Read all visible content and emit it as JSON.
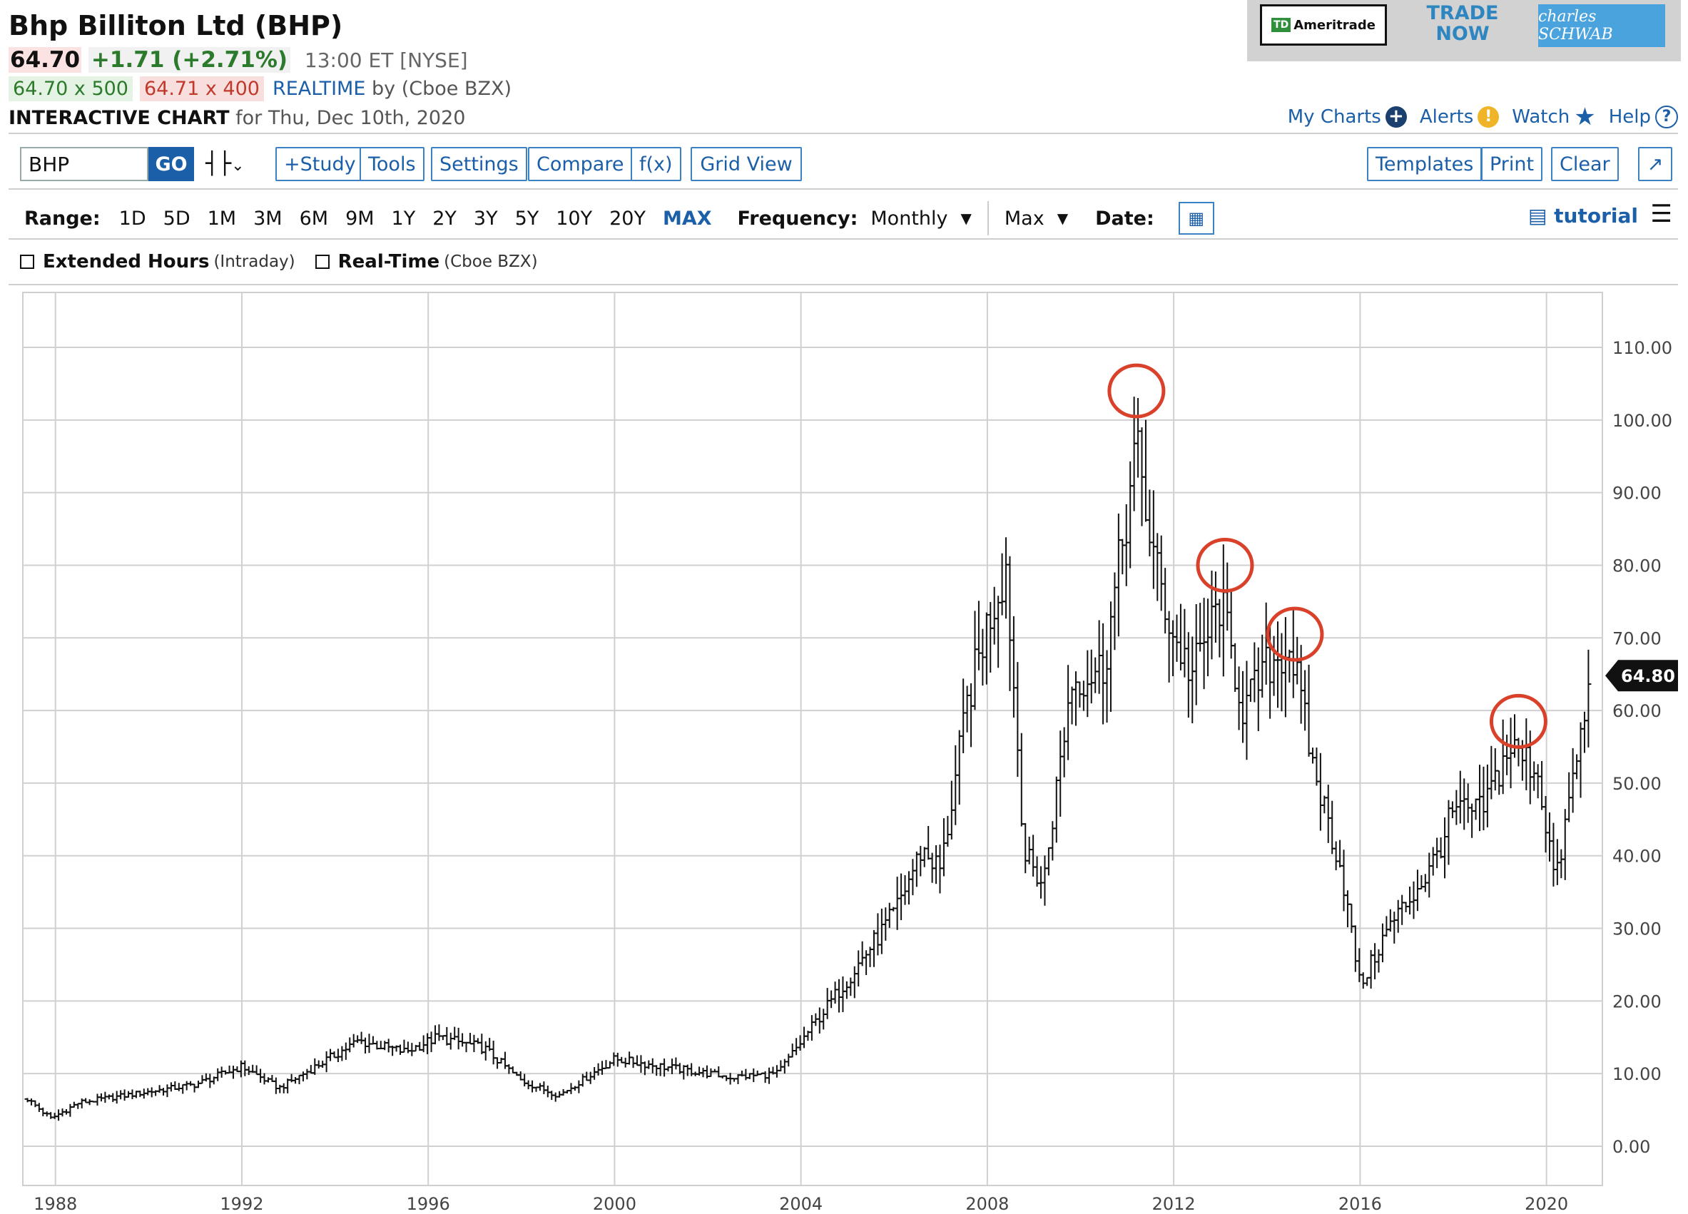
{
  "header": {
    "title": "Bhp Billiton Ltd (BHP)",
    "price": "64.70",
    "change": "+1.71",
    "change_pct": "(+2.71%)",
    "time": "13:00 ET [NYSE]",
    "bid": "64.70 x 500",
    "ask": "64.71 x 400",
    "realtime": "REALTIME",
    "realtime_by": "by (Cboe BZX)",
    "chart_label": "INTERACTIVE CHART",
    "chart_date": "for Thu, Dec 10th, 2020"
  },
  "ads": {
    "td_label": "Ameritrade",
    "td_logo": "TD",
    "trade_now": "TRADE NOW",
    "schwab": "charles SCHWAB"
  },
  "toplinks": {
    "my_charts": "My Charts",
    "alerts": "Alerts",
    "watch": "Watch",
    "help": "Help"
  },
  "toolbar": {
    "symbol": "BHP",
    "go": "GO",
    "study": "+Study",
    "tools": "Tools",
    "settings": "Settings",
    "compare": "Compare",
    "fx": "f(x)",
    "grid_view": "Grid View",
    "templates": "Templates",
    "print": "Print",
    "clear": "Clear",
    "expand_icon": "↗"
  },
  "range": {
    "label": "Range:",
    "options": [
      "1D",
      "5D",
      "1M",
      "3M",
      "6M",
      "9M",
      "1Y",
      "2Y",
      "3Y",
      "5Y",
      "10Y",
      "20Y",
      "MAX"
    ],
    "selected": "MAX",
    "frequency_label": "Frequency:",
    "frequency_value": "Monthly",
    "period_value": "Max",
    "date_label": "Date:",
    "tutorial": "tutorial"
  },
  "checkboxes": {
    "extended_label": "Extended Hours",
    "extended_sub": "(Intraday)",
    "realtime_label": "Real-Time",
    "realtime_sub": "(Cboe BZX)"
  },
  "colors": {
    "accent": "#1b5fa8",
    "up": "#2c7a2c",
    "down": "#c0392b",
    "highlight_circle": "#d9412b",
    "bar": "#111111",
    "grid": "#d0d0d0"
  },
  "chart_data": {
    "type": "ohlc",
    "frequency": "monthly",
    "last_value_label": "64.80",
    "ylim": [
      0,
      110
    ],
    "y_ticks": [
      0,
      10,
      20,
      30,
      40,
      50,
      60,
      70,
      80,
      90,
      100,
      110
    ],
    "y_tick_labels": [
      "0.00",
      "10.00",
      "20.00",
      "30.00",
      "40.00",
      "50.00",
      "60.00",
      "70.00",
      "80.00",
      "90.00",
      "100.00",
      "110.00"
    ],
    "x_ticks": [
      1988,
      1992,
      1996,
      2000,
      2004,
      2008,
      2012,
      2016,
      2020
    ],
    "x_tick_labels": [
      "1988",
      "1992",
      "1996",
      "2000",
      "2004",
      "2008",
      "2012",
      "2016",
      "2020"
    ],
    "x_range": [
      1987.3,
      2021.2
    ],
    "grid": true,
    "key_points": [
      {
        "t": 1987.4,
        "v": 6.5
      },
      {
        "t": 1987.9,
        "v": 3.8
      },
      {
        "t": 1988.5,
        "v": 6.0
      },
      {
        "t": 1990.0,
        "v": 7.5
      },
      {
        "t": 1991.0,
        "v": 8.5
      },
      {
        "t": 1992.0,
        "v": 11.0
      },
      {
        "t": 1992.8,
        "v": 8.0
      },
      {
        "t": 1994.5,
        "v": 14.5
      },
      {
        "t": 1995.5,
        "v": 13.0
      },
      {
        "t": 1996.2,
        "v": 15.0
      },
      {
        "t": 1997.2,
        "v": 13.5
      },
      {
        "t": 1998.0,
        "v": 9.0
      },
      {
        "t": 1998.8,
        "v": 7.0
      },
      {
        "t": 2000.0,
        "v": 12.0
      },
      {
        "t": 2001.5,
        "v": 10.5
      },
      {
        "t": 2002.5,
        "v": 9.5
      },
      {
        "t": 2003.5,
        "v": 10.0
      },
      {
        "t": 2004.3,
        "v": 17.0
      },
      {
        "t": 2005.0,
        "v": 23.0
      },
      {
        "t": 2006.0,
        "v": 32.0
      },
      {
        "t": 2006.6,
        "v": 41.0
      },
      {
        "t": 2007.0,
        "v": 38.0
      },
      {
        "t": 2007.6,
        "v": 62.0
      },
      {
        "t": 2008.0,
        "v": 72.0
      },
      {
        "t": 2008.4,
        "v": 80.0
      },
      {
        "t": 2008.8,
        "v": 40.0
      },
      {
        "t": 2009.2,
        "v": 36.0
      },
      {
        "t": 2009.8,
        "v": 64.0
      },
      {
        "t": 2010.5,
        "v": 66.0
      },
      {
        "t": 2011.2,
        "v": 96.0
      },
      {
        "t": 2011.6,
        "v": 80.0
      },
      {
        "t": 2012.0,
        "v": 70.0
      },
      {
        "t": 2012.4,
        "v": 65.0
      },
      {
        "t": 2013.0,
        "v": 75.0
      },
      {
        "t": 2013.5,
        "v": 60.0
      },
      {
        "t": 2014.0,
        "v": 66.0
      },
      {
        "t": 2014.5,
        "v": 69.0
      },
      {
        "t": 2015.0,
        "v": 52.0
      },
      {
        "t": 2015.6,
        "v": 38.0
      },
      {
        "t": 2016.0,
        "v": 22.0
      },
      {
        "t": 2016.6,
        "v": 30.0
      },
      {
        "t": 2017.5,
        "v": 38.0
      },
      {
        "t": 2018.0,
        "v": 46.0
      },
      {
        "t": 2018.6,
        "v": 46.0
      },
      {
        "t": 2019.2,
        "v": 55.0
      },
      {
        "t": 2019.8,
        "v": 52.0
      },
      {
        "t": 2020.2,
        "v": 36.0
      },
      {
        "t": 2020.5,
        "v": 48.0
      },
      {
        "t": 2020.95,
        "v": 64.0
      }
    ],
    "annotations": [
      {
        "type": "circle",
        "t": 2011.2,
        "v": 104.0
      },
      {
        "type": "circle",
        "t": 2013.1,
        "v": 80.0
      },
      {
        "type": "circle",
        "t": 2014.6,
        "v": 70.5
      },
      {
        "type": "circle",
        "t": 2019.4,
        "v": 58.5
      }
    ]
  }
}
